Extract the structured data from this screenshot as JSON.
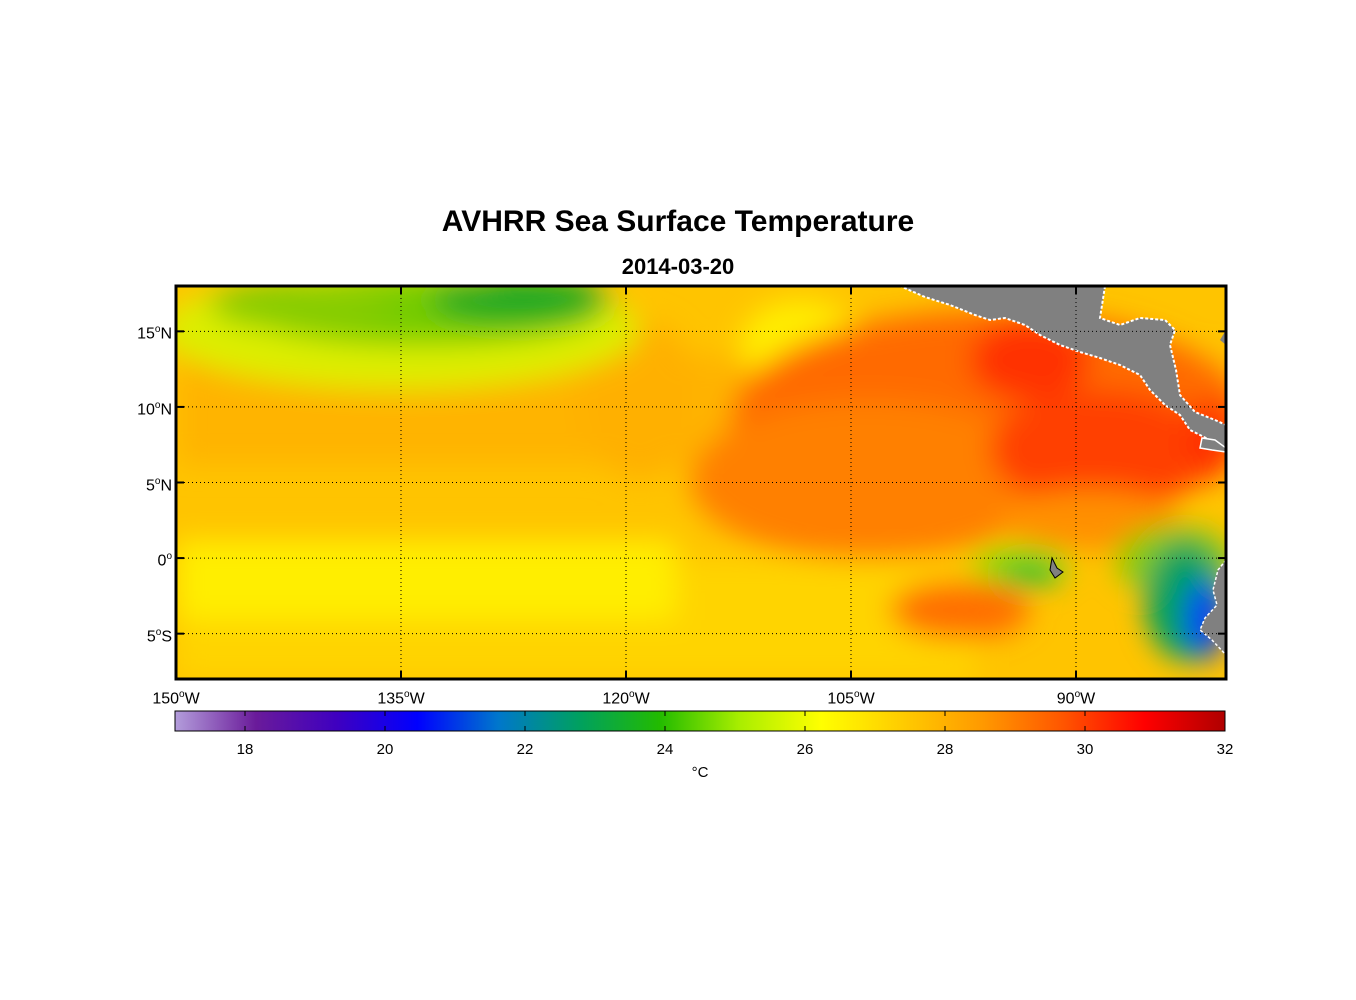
{
  "title": "AVHRR Sea Surface Temperature",
  "subtitle": "2014-03-20",
  "map": {
    "lon_range": [
      -150,
      -80
    ],
    "lat_range": [
      -8,
      18
    ],
    "lat_ticks": [
      {
        "value": 15,
        "deg": "15",
        "hemi": "N"
      },
      {
        "value": 10,
        "deg": "10",
        "hemi": "N"
      },
      {
        "value": 5,
        "deg": "5",
        "hemi": "N"
      },
      {
        "value": 0,
        "deg": "0",
        "hemi": ""
      },
      {
        "value": -5,
        "deg": "5",
        "hemi": "S"
      }
    ],
    "lon_ticks": [
      {
        "value": -150,
        "deg": "150",
        "hemi": "W"
      },
      {
        "value": -135,
        "deg": "135",
        "hemi": "W"
      },
      {
        "value": -120,
        "deg": "120",
        "hemi": "W"
      },
      {
        "value": -105,
        "deg": "105",
        "hemi": "W"
      },
      {
        "value": -90,
        "deg": "90",
        "hemi": "W"
      }
    ],
    "land_color": "#808080"
  },
  "colorbar": {
    "min": 17,
    "max": 32,
    "ticks": [
      "18",
      "20",
      "22",
      "24",
      "26",
      "28",
      "30",
      "32"
    ],
    "unit": "°C",
    "colormap": [
      "#b39ddb",
      "#6a1b9a",
      "#3f00c0",
      "#0000ff",
      "#0077cc",
      "#00a060",
      "#22bb00",
      "#aaee00",
      "#ffff00",
      "#ffcc00",
      "#ff9900",
      "#ff5500",
      "#ff0000",
      "#b00000"
    ]
  }
}
